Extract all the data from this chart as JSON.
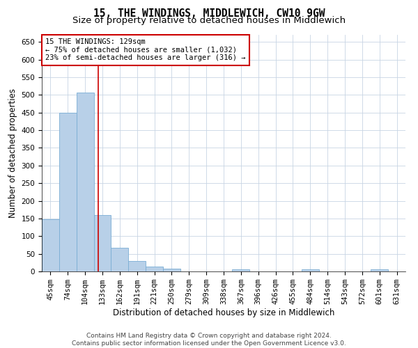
{
  "title": "15, THE WINDINGS, MIDDLEWICH, CW10 9GW",
  "subtitle": "Size of property relative to detached houses in Middlewich",
  "xlabel": "Distribution of detached houses by size in Middlewich",
  "ylabel": "Number of detached properties",
  "footnote1": "Contains HM Land Registry data © Crown copyright and database right 2024.",
  "footnote2": "Contains public sector information licensed under the Open Government Licence v3.0.",
  "annotation_line1": "15 THE WINDINGS: 129sqm",
  "annotation_line2": "← 75% of detached houses are smaller (1,032)",
  "annotation_line3": "23% of semi-detached houses are larger (316) →",
  "bar_labels": [
    "45sqm",
    "74sqm",
    "104sqm",
    "133sqm",
    "162sqm",
    "191sqm",
    "221sqm",
    "250sqm",
    "279sqm",
    "309sqm",
    "338sqm",
    "367sqm",
    "396sqm",
    "426sqm",
    "455sqm",
    "484sqm",
    "514sqm",
    "543sqm",
    "572sqm",
    "601sqm",
    "631sqm"
  ],
  "bar_values": [
    148,
    450,
    507,
    160,
    67,
    30,
    13,
    8,
    0,
    0,
    0,
    5,
    0,
    0,
    0,
    5,
    0,
    0,
    0,
    5,
    0
  ],
  "bar_color": "#b8d0e8",
  "bar_edge_color": "#7aadd4",
  "red_line_x": 2.75,
  "ylim": [
    0,
    670
  ],
  "yticks": [
    0,
    50,
    100,
    150,
    200,
    250,
    300,
    350,
    400,
    450,
    500,
    550,
    600,
    650
  ],
  "bg_color": "#ffffff",
  "grid_color": "#c8d4e4",
  "annotation_box_color": "#ffffff",
  "annotation_box_edge": "#cc0000",
  "red_line_color": "#cc0000",
  "title_fontsize": 10.5,
  "subtitle_fontsize": 9.5,
  "axis_label_fontsize": 8.5,
  "tick_fontsize": 7.5,
  "annotation_fontsize": 7.5,
  "footnote_fontsize": 6.5
}
